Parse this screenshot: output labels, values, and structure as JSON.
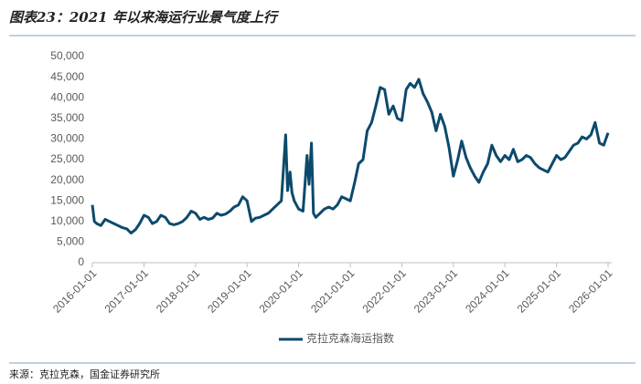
{
  "chart_data": {
    "type": "line",
    "title": "图表23：2021 年以来海运行业景气度上行",
    "source": "来源：克拉克森，国金证券研究所",
    "x": [
      "2016-01-01",
      "2016-01-15",
      "2016-02-01",
      "2016-03-01",
      "2016-04-01",
      "2016-05-01",
      "2016-06-01",
      "2016-07-01",
      "2016-08-01",
      "2016-09-01",
      "2016-10-01",
      "2016-11-01",
      "2016-12-01",
      "2017-01-01",
      "2017-02-01",
      "2017-03-01",
      "2017-04-01",
      "2017-05-01",
      "2017-06-01",
      "2017-07-01",
      "2017-08-01",
      "2017-09-01",
      "2017-10-01",
      "2017-11-01",
      "2017-12-01",
      "2018-01-01",
      "2018-02-01",
      "2018-03-01",
      "2018-04-01",
      "2018-05-01",
      "2018-06-01",
      "2018-07-01",
      "2018-08-01",
      "2018-09-01",
      "2018-10-01",
      "2018-11-01",
      "2018-12-01",
      "2019-01-01",
      "2019-02-01",
      "2019-03-01",
      "2019-04-01",
      "2019-05-01",
      "2019-06-01",
      "2019-07-01",
      "2019-08-01",
      "2019-09-01",
      "2019-10-01",
      "2019-10-15",
      "2019-11-01",
      "2019-11-15",
      "2019-12-01",
      "2020-01-01",
      "2020-02-01",
      "2020-03-01",
      "2020-03-15",
      "2020-04-01",
      "2020-04-15",
      "2020-05-01",
      "2020-06-01",
      "2020-07-01",
      "2020-08-01",
      "2020-09-01",
      "2020-10-01",
      "2020-11-01",
      "2020-12-01",
      "2021-01-01",
      "2021-02-01",
      "2021-03-01",
      "2021-04-01",
      "2021-05-01",
      "2021-06-01",
      "2021-07-01",
      "2021-08-01",
      "2021-09-01",
      "2021-10-01",
      "2021-11-01",
      "2021-12-01",
      "2022-01-01",
      "2022-02-01",
      "2022-03-01",
      "2022-04-01",
      "2022-05-01",
      "2022-06-01",
      "2022-07-01",
      "2022-08-01",
      "2022-09-01",
      "2022-10-01",
      "2022-11-01",
      "2022-12-01",
      "2023-01-01",
      "2023-02-01",
      "2023-03-01",
      "2023-04-01",
      "2023-05-01",
      "2023-06-01",
      "2023-07-01",
      "2023-08-01",
      "2023-09-01",
      "2023-10-01",
      "2023-11-01",
      "2023-12-01",
      "2024-01-01",
      "2024-02-01",
      "2024-03-01",
      "2024-04-01",
      "2024-05-01",
      "2024-06-01",
      "2024-07-01",
      "2024-08-01",
      "2024-09-01",
      "2024-10-01",
      "2024-11-01",
      "2024-12-01",
      "2025-01-01",
      "2025-02-01",
      "2025-03-01",
      "2025-04-01",
      "2025-05-01",
      "2025-06-01",
      "2025-07-01",
      "2025-08-01",
      "2025-09-01",
      "2025-10-01",
      "2025-11-01",
      "2025-12-01",
      "2026-01-01"
    ],
    "series": [
      {
        "name": "克拉克森海运指数",
        "color": "#0c4a6c",
        "values": [
          14000,
          10000,
          9500,
          9000,
          10500,
          10000,
          9500,
          9000,
          8500,
          8200,
          7200,
          8000,
          9500,
          11500,
          11000,
          9500,
          10000,
          11500,
          11000,
          9500,
          9200,
          9500,
          10000,
          11000,
          12500,
          12000,
          10500,
          11000,
          10500,
          10800,
          12000,
          11500,
          11800,
          12500,
          13500,
          14000,
          16000,
          15000,
          10000,
          10800,
          11000,
          11500,
          12000,
          13000,
          14000,
          15000,
          31000,
          17500,
          22000,
          17000,
          15000,
          13000,
          12500,
          26000,
          19000,
          29000,
          12000,
          11000,
          12000,
          13000,
          13500,
          13000,
          14000,
          16000,
          15500,
          15000,
          19500,
          24000,
          25000,
          32000,
          34000,
          38000,
          42500,
          42000,
          36000,
          38000,
          35000,
          34500,
          42000,
          43500,
          42500,
          44500,
          41000,
          39000,
          36500,
          32000,
          36000,
          33000,
          28000,
          21000,
          25000,
          29500,
          25500,
          23000,
          21000,
          19500,
          22000,
          24000,
          28500,
          26000,
          24500,
          26000,
          25000,
          27500,
          24500,
          25000,
          26000,
          25500,
          24000,
          23000,
          22500,
          22000,
          24000,
          26000,
          25000,
          25500,
          27000,
          28500,
          29000,
          30500,
          30000,
          31000,
          34000,
          29000,
          28500,
          31500
        ]
      }
    ],
    "xlim": [
      "2016-01-01",
      "2026-01-01"
    ],
    "xticks": [
      "2016-01-01",
      "2017-01-01",
      "2018-01-01",
      "2019-01-01",
      "2020-01-01",
      "2021-01-01",
      "2022-01-01",
      "2023-01-01",
      "2024-01-01",
      "2025-01-01",
      "2026-01-01"
    ],
    "ylim": [
      0,
      50000
    ],
    "yticks": [
      0,
      {
        "value": 5000,
        "label": "5,000"
      },
      {
        "value": 10000,
        "label": "10,000"
      },
      {
        "value": 15000,
        "label": "15,000"
      },
      {
        "value": 20000,
        "label": "20,000"
      },
      {
        "value": 25000,
        "label": "25,000"
      },
      {
        "value": 30000,
        "label": "30,000"
      },
      {
        "value": 35000,
        "label": "35,000"
      },
      {
        "value": 40000,
        "label": "40,000"
      },
      {
        "value": 45000,
        "label": "45,000"
      },
      {
        "value": 50000,
        "label": "50,000"
      }
    ],
    "grid": false,
    "legend": "bottom"
  }
}
